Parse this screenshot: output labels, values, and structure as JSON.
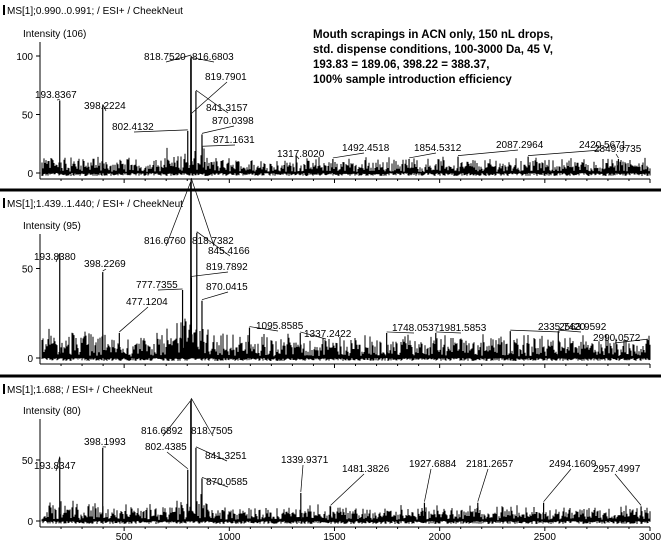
{
  "chart_data": {
    "type": "line",
    "annotation_lines": [
      "Mouth scrapings in ACN only, 150 nL drops,",
      "std. dispense conditions, 100-3000 Da, 45 V,",
      "193.83 = 189.06, 398.22 = 388.37,",
      "100% sample introduction efficiency"
    ],
    "xlim": [
      100,
      3000
    ],
    "x_ticks": [
      "500",
      "1000",
      "1500",
      "2000",
      "2500",
      "3000"
    ],
    "panels": [
      {
        "header": "MS[1];0.990..0.991; / ESI+ / CheekNeut",
        "ylabel": "Intensity (106)",
        "y_ticks": [
          "0",
          "50",
          "100"
        ],
        "ylim": [
          0,
          100
        ],
        "peaks": [
          {
            "mz": 193.8367,
            "label": "193.8367",
            "rel": 62
          },
          {
            "mz": 398.2224,
            "label": "398.2224",
            "rel": 58
          },
          {
            "mz": 802.4132,
            "label": "802.4132",
            "rel": 36
          },
          {
            "mz": 818.752,
            "label": "818.7520",
            "rel": 100
          },
          {
            "mz": 816.6803,
            "label": "816.6803",
            "rel": 98
          },
          {
            "mz": 819.7901,
            "label": "819.7901",
            "rel": 50
          },
          {
            "mz": 841.3157,
            "label": "841.3157",
            "rel": 70
          },
          {
            "mz": 870.0398,
            "label": "870.0398",
            "rel": 33
          },
          {
            "mz": 871.1631,
            "label": "871.1631",
            "rel": 22
          },
          {
            "mz": 1317.802,
            "label": "1317.8020",
            "rel": 14
          },
          {
            "mz": 1492.4518,
            "label": "1492.4518",
            "rel": 12
          },
          {
            "mz": 1854.5312,
            "label": "1854.5312",
            "rel": 12
          },
          {
            "mz": 2087.2964,
            "label": "2087.2964",
            "rel": 14
          },
          {
            "mz": 2420.5671,
            "label": "2420.5671",
            "rel": 14
          },
          {
            "mz": 2849.9735,
            "label": "2849.9735",
            "rel": 12
          }
        ]
      },
      {
        "header": "MS[1];1.439..1.440; / ESI+ / CheekNeut",
        "ylabel": "Intensity (95)",
        "y_ticks": [
          "0",
          "50"
        ],
        "ylim": [
          0,
          100
        ],
        "peaks": [
          {
            "mz": 193.838,
            "label": "193.8380",
            "rel": 58
          },
          {
            "mz": 398.2269,
            "label": "398.2269",
            "rel": 48
          },
          {
            "mz": 477.1204,
            "label": "477.1204",
            "rel": 14
          },
          {
            "mz": 777.7355,
            "label": "777.7355",
            "rel": 38
          },
          {
            "mz": 816.676,
            "label": "816.6760",
            "rel": 98
          },
          {
            "mz": 818.7382,
            "label": "818.7382",
            "rel": 100
          },
          {
            "mz": 819.7892,
            "label": "819.7892",
            "rel": 45
          },
          {
            "mz": 845.4166,
            "label": "845.4166",
            "rel": 70
          },
          {
            "mz": 870.0415,
            "label": "870.0415",
            "rel": 32
          },
          {
            "mz": 1095.8585,
            "label": "1095.8585",
            "rel": 17
          },
          {
            "mz": 1337.2422,
            "label": "1337.2422",
            "rel": 14
          },
          {
            "mz": 1748.0537,
            "label": "1748.0537",
            "rel": 14
          },
          {
            "mz": 1981.5853,
            "label": "1981.5853",
            "rel": 14
          },
          {
            "mz": 2335.742,
            "label": "2335.7420",
            "rel": 15
          },
          {
            "mz": 2563.9592,
            "label": "2563.9592",
            "rel": 15
          },
          {
            "mz": 2990.0572,
            "label": "2990.0572",
            "rel": 10
          }
        ]
      },
      {
        "header": "MS[1];1.688; / ESI+ / CheekNeut",
        "ylabel": "Intensity (80)",
        "y_ticks": [
          "0",
          "50"
        ],
        "ylim": [
          0,
          100
        ],
        "peaks": [
          {
            "mz": 193.8347,
            "label": "193.8347",
            "rel": 52
          },
          {
            "mz": 398.1993,
            "label": "398.1993",
            "rel": 60
          },
          {
            "mz": 802.4385,
            "label": "802.4385",
            "rel": 42
          },
          {
            "mz": 816.6892,
            "label": "816.6892",
            "rel": 98
          },
          {
            "mz": 818.7505,
            "label": "818.7505",
            "rel": 100
          },
          {
            "mz": 841.3251,
            "label": "841.3251",
            "rel": 60
          },
          {
            "mz": 870.0585,
            "label": "870.0585",
            "rel": 35
          },
          {
            "mz": 1339.9371,
            "label": "1339.9371",
            "rel": 23
          },
          {
            "mz": 1481.3826,
            "label": "1481.3826",
            "rel": 12
          },
          {
            "mz": 1927.6884,
            "label": "1927.6884",
            "rel": 15
          },
          {
            "mz": 2181.2657,
            "label": "2181.2657",
            "rel": 15
          },
          {
            "mz": 2494.1609,
            "label": "2494.1609",
            "rel": 15
          },
          {
            "mz": 2957.4997,
            "label": "2957.4997",
            "rel": 12
          }
        ]
      }
    ]
  }
}
